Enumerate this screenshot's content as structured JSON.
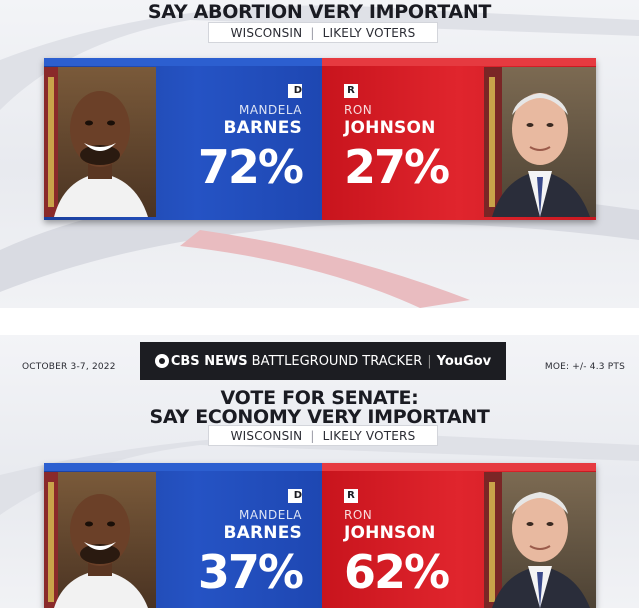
{
  "panels": [
    {
      "title_lines": [
        "SAY ABORTION VERY IMPORTANT"
      ],
      "state": "WISCONSIN",
      "population": "LIKELY VOTERS",
      "dem": {
        "party": "D",
        "first": "MANDELA",
        "last": "BARNES",
        "pct": "72%"
      },
      "rep": {
        "party": "R",
        "first": "RON",
        "last": "JOHNSON",
        "pct": "27%"
      }
    },
    {
      "date": "OCTOBER 3-7, 2022",
      "brand": {
        "network": "CBS NEWS",
        "tracker": "BATTLEGROUND TRACKER",
        "divider": "|",
        "pollster": "YouGov"
      },
      "moe": "MOE: +/- 4.3 PTS",
      "title_lines": [
        "VOTE FOR SENATE:",
        "SAY ECONOMY VERY IMPORTANT"
      ],
      "state": "WISCONSIN",
      "population": "LIKELY VOTERS",
      "dem": {
        "party": "D",
        "first": "MANDELA",
        "last": "BARNES",
        "pct": "37%"
      },
      "rep": {
        "party": "R",
        "first": "RON",
        "last": "JOHNSON",
        "pct": "62%"
      }
    }
  ],
  "colors": {
    "dem": "#2553c4",
    "rep": "#e0252d"
  }
}
